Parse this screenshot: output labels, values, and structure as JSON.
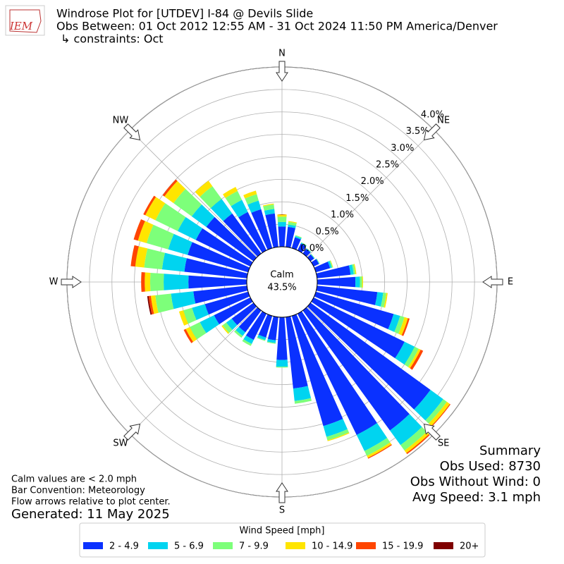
{
  "chart_data": {
    "type": "windrose",
    "logo": "IEM",
    "title": "Windrose Plot for [UTDEV] I-84 @ Devils Slide",
    "subtitle": [
      "Obs Between: 01 Oct 2012 12:55 AM - 31 Oct 2024 11:50 PM America/Denver",
      "↳ constraints: Oct"
    ],
    "x": [
      0,
      10,
      20,
      30,
      40,
      50,
      60,
      70,
      80,
      90,
      100,
      110,
      120,
      130,
      140,
      150,
      160,
      170,
      180,
      190,
      200,
      210,
      220,
      230,
      240,
      250,
      260,
      270,
      280,
      290,
      300,
      310,
      320,
      330,
      340,
      350
    ],
    "series": [
      {
        "name": "2 - 4.9",
        "color": "#0a31ff",
        "values": [
          0.45,
          0.45,
          0.25,
          0.17,
          0.13,
          0.1,
          0.13,
          0.33,
          0.75,
          0.85,
          1.35,
          1.8,
          2.25,
          3.3,
          3.3,
          3.0,
          2.55,
          1.6,
          0.95,
          0.52,
          0.5,
          0.65,
          0.6,
          0.6,
          0.9,
          1.0,
          1.2,
          1.3,
          1.4,
          1.4,
          1.35,
          1.3,
          1.1,
          0.95,
          0.9,
          0.75
        ]
      },
      {
        "name": "5 - 6.9",
        "color": "#00d4f0",
        "values": [
          0.1,
          0.05,
          0.03,
          0.02,
          0.01,
          0.01,
          0.01,
          0.04,
          0.07,
          0.1,
          0.13,
          0.15,
          0.25,
          0.35,
          0.4,
          0.4,
          0.25,
          0.28,
          0.15,
          0.06,
          0.06,
          0.1,
          0.1,
          0.15,
          0.35,
          0.3,
          0.5,
          0.55,
          0.5,
          0.45,
          0.45,
          0.4,
          0.4,
          0.3,
          0.2,
          0.1
        ]
      },
      {
        "name": "7 - 9.9",
        "color": "#7dff7a",
        "values": [
          0.12,
          0.06,
          0.02,
          0.01,
          0.01,
          0.01,
          0.01,
          0.02,
          0.04,
          0.05,
          0.07,
          0.1,
          0.1,
          0.1,
          0.15,
          0.12,
          0.08,
          0.06,
          0.02,
          0.02,
          0.02,
          0.05,
          0.05,
          0.1,
          0.25,
          0.2,
          0.35,
          0.3,
          0.4,
          0.5,
          0.55,
          0.5,
          0.35,
          0.22,
          0.15,
          0.1
        ]
      },
      {
        "name": "10 - 14.9",
        "color": "#ffe500",
        "values": [
          0.05,
          0.02,
          0,
          0,
          0,
          0,
          0,
          0.01,
          0.02,
          0.02,
          0.03,
          0.08,
          0.05,
          0.08,
          0.07,
          0.05,
          0.02,
          0,
          0,
          0,
          0,
          0,
          0,
          0.03,
          0.1,
          0.1,
          0.1,
          0.12,
          0.2,
          0.2,
          0.25,
          0.25,
          0.15,
          0.1,
          0.08,
          0.02
        ]
      },
      {
        "name": "15 - 19.9",
        "color": "#ff4500",
        "values": [
          0,
          0,
          0,
          0,
          0,
          0,
          0,
          0,
          0,
          0,
          0,
          0.04,
          0.06,
          0.02,
          0.03,
          0.02,
          0,
          0,
          0,
          0,
          0,
          0,
          0,
          0,
          0.05,
          0,
          0.05,
          0.08,
          0.1,
          0.1,
          0.05,
          0.05,
          0,
          0,
          0,
          0
        ]
      },
      {
        "name": "20+",
        "color": "#7f0000",
        "values": [
          0,
          0,
          0,
          0,
          0,
          0,
          0,
          0,
          0,
          0,
          0,
          0,
          0,
          0,
          0,
          0,
          0,
          0,
          0,
          0,
          0,
          0,
          0,
          0,
          0,
          0,
          0.03,
          0,
          0,
          0,
          0,
          0,
          0,
          0,
          0,
          0
        ]
      }
    ],
    "rlim": [
      0,
      4
    ],
    "rticks": [
      {
        "value": 0,
        "label": "0.0%"
      },
      {
        "value": 0.5,
        "label": "0.5%"
      },
      {
        "value": 1,
        "label": "1.0%"
      },
      {
        "value": 1.5,
        "label": "1.5%"
      },
      {
        "value": 2,
        "label": "2.0%"
      },
      {
        "value": 2.5,
        "label": "2.5%"
      },
      {
        "value": 3,
        "label": "3.0%"
      },
      {
        "value": 3.5,
        "label": "3.5%"
      },
      {
        "value": 4,
        "label": "4.0%"
      }
    ],
    "compass_labels": [
      "N",
      "NE",
      "E",
      "SE",
      "S",
      "SW",
      "W",
      "NW"
    ],
    "calm_label": "Calm",
    "calm_value": 43.5,
    "calm_value_label": "43.5%",
    "summary": [
      "Summary",
      "Obs Used: 8730",
      "Obs Without Wind: 0",
      "Avg Speed: 3.1 mph"
    ],
    "notes": [
      "Calm values are < 2.0 mph",
      "Bar Convention: Meteorology",
      "Flow arrows relative to plot center."
    ],
    "generated": "Generated: 11 May 2025",
    "legend_title": "Wind Speed [mph]"
  }
}
